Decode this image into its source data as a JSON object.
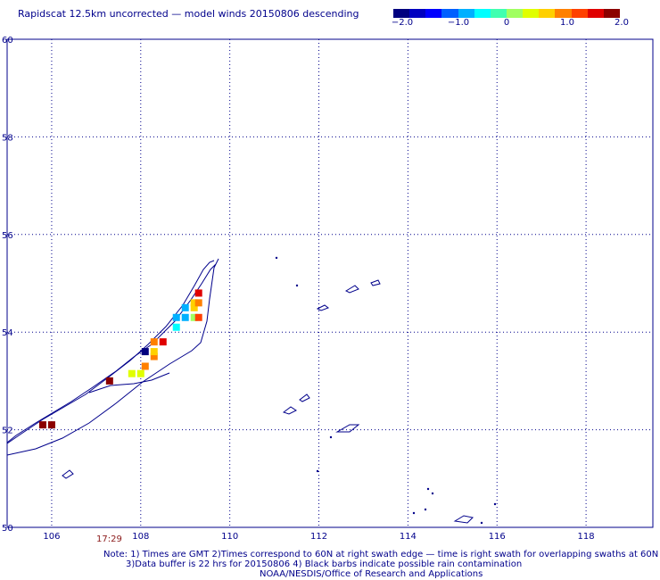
{
  "title": "Rapidscat 12.5km uncorrected — model winds 20150806 descending",
  "colorbar": {
    "ticks": [
      "−2.0",
      "−1.0",
      "0",
      "1.0",
      "2.0"
    ],
    "colors": [
      "#00007f",
      "#0000c0",
      "#0000ff",
      "#0060ff",
      "#00b0ff",
      "#00ffff",
      "#40ffb0",
      "#a0ff60",
      "#e0ff00",
      "#ffd000",
      "#ff8000",
      "#ff4000",
      "#e00000",
      "#8b0000"
    ]
  },
  "map": {
    "type": "heatmap",
    "lon_range": [
      105,
      119.5
    ],
    "lat_range": [
      50,
      60
    ],
    "x_ticks": [
      "106",
      "108",
      "110",
      "112",
      "114",
      "116",
      "118"
    ],
    "y_ticks": [
      "50",
      "52",
      "54",
      "56",
      "58",
      "60"
    ],
    "grid": true,
    "pixels": [
      {
        "lon": 105.8,
        "lat": 52.1,
        "value": 2.0
      },
      {
        "lon": 106.0,
        "lat": 52.1,
        "value": 2.0
      },
      {
        "lon": 107.3,
        "lat": 53.0,
        "value": 2.0
      },
      {
        "lon": 107.8,
        "lat": 53.15,
        "value": 0.5
      },
      {
        "lon": 108.0,
        "lat": 53.15,
        "value": 0.6
      },
      {
        "lon": 108.1,
        "lat": 53.3,
        "value": 1.2
      },
      {
        "lon": 108.1,
        "lat": 53.6,
        "value": -2.0
      },
      {
        "lon": 108.3,
        "lat": 53.5,
        "value": 1.0
      },
      {
        "lon": 108.3,
        "lat": 53.6,
        "value": 0.9
      },
      {
        "lon": 108.3,
        "lat": 53.8,
        "value": 1.0
      },
      {
        "lon": 108.5,
        "lat": 53.8,
        "value": 1.8
      },
      {
        "lon": 108.8,
        "lat": 54.1,
        "value": -0.4
      },
      {
        "lon": 108.8,
        "lat": 54.3,
        "value": -0.9
      },
      {
        "lon": 109.0,
        "lat": 54.3,
        "value": -0.9
      },
      {
        "lon": 109.0,
        "lat": 54.5,
        "value": -0.7
      },
      {
        "lon": 109.2,
        "lat": 54.3,
        "value": 0.0
      },
      {
        "lon": 109.2,
        "lat": 54.5,
        "value": 0.7
      },
      {
        "lon": 109.2,
        "lat": 54.6,
        "value": 0.9
      },
      {
        "lon": 109.3,
        "lat": 54.3,
        "value": 1.3
      },
      {
        "lon": 109.3,
        "lat": 54.6,
        "value": 1.2
      },
      {
        "lon": 109.3,
        "lat": 54.8,
        "value": 1.6
      }
    ],
    "coast_color": "#00008b"
  },
  "time_label": "17:29",
  "notes": [
    "Note: 1) Times are GMT 2)Times correspond to 60N at right swath edge — time is right swath for overlapping swaths at 60N",
    "3)Data buffer is 22 hrs for 20150806 4) Black barbs indicate possible rain contamination",
    "NOAA/NESDIS/Office of Research and Applications"
  ]
}
